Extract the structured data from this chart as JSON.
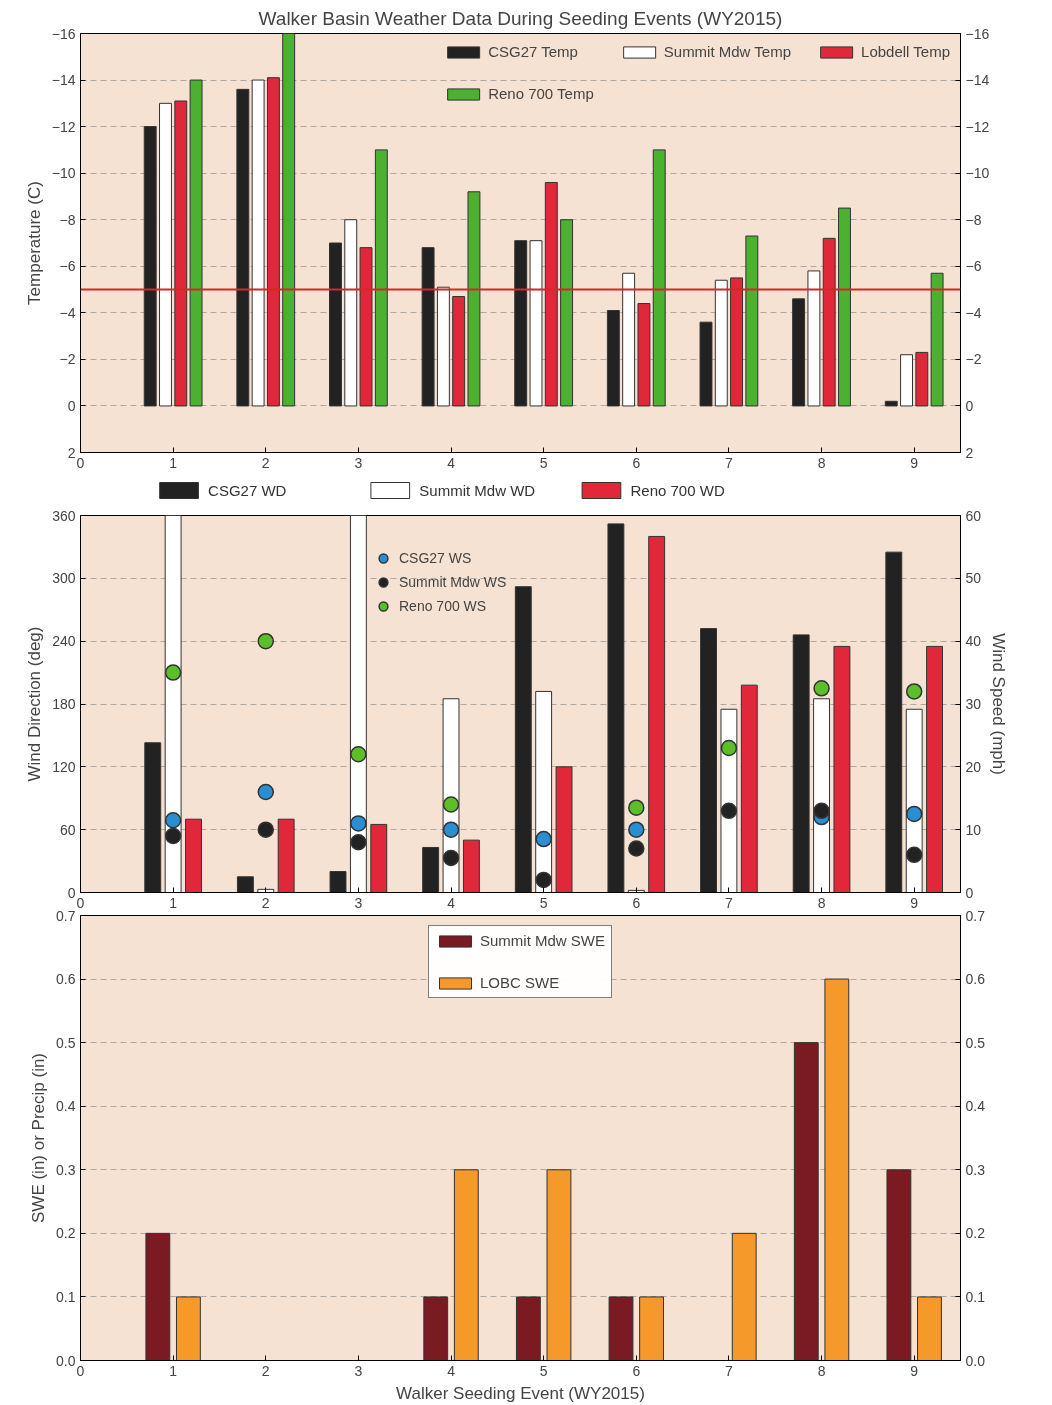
{
  "chart_data": [
    {
      "type": "bar",
      "title": "Walker Basin Weather Data During Seeding Events (WY2015)",
      "ylabel": "Temperature (C)",
      "x": [
        1,
        2,
        3,
        4,
        5,
        6,
        7,
        8,
        9
      ],
      "xlim": [
        0,
        9.5
      ],
      "xticks": [
        0,
        1,
        2,
        3,
        4,
        5,
        6,
        7,
        8,
        9
      ],
      "ylim": [
        2,
        -16
      ],
      "yticks": [
        -16,
        -14,
        -12,
        -10,
        -8,
        -6,
        -4,
        -2,
        0,
        2
      ],
      "y2lim": [
        2,
        -16
      ],
      "y2ticks": [
        -16,
        -14,
        -12,
        -10,
        -8,
        -6,
        -4,
        -2,
        0,
        2
      ],
      "grid": "y",
      "legend": "top right",
      "ref_lines": [
        {
          "axis": "y",
          "value": -5,
          "color": "#d62728"
        }
      ],
      "series": [
        {
          "name": "CSG27 Temp",
          "color": "#222222",
          "values": [
            -12,
            -13.6,
            -7,
            -6.8,
            -7.1,
            -4.1,
            -3.6,
            -4.6,
            -0.2
          ]
        },
        {
          "name": "Summit Mdw Temp",
          "color": "#ffffff",
          "values": [
            -13,
            -14,
            -8,
            -5.1,
            -7.1,
            -5.7,
            -5.4,
            -5.8,
            -2.2
          ]
        },
        {
          "name": "Lobdell Temp",
          "color": "#e0283a",
          "values": [
            -13.1,
            -14.1,
            -6.8,
            -4.7,
            -9.6,
            -4.4,
            -5.5,
            -7.2,
            -2.3
          ]
        },
        {
          "name": "Reno 700 Temp",
          "color": "#4cb030",
          "values": [
            -14,
            -16,
            -11,
            -9.2,
            -8,
            -11,
            -7.3,
            -8.5,
            -5.7
          ]
        }
      ]
    },
    {
      "type": "bar",
      "ylabel": "Wind Direction (deg)",
      "y2label": "Wind Speed (mph)",
      "x": [
        1,
        2,
        3,
        4,
        5,
        6,
        7,
        8,
        9
      ],
      "xlim": [
        0,
        9.5
      ],
      "xticks": [
        0,
        1,
        2,
        3,
        4,
        5,
        6,
        7,
        8,
        9
      ],
      "ylim": [
        0,
        360
      ],
      "yticks": [
        0,
        60,
        120,
        180,
        240,
        300,
        360
      ],
      "y2lim": [
        0,
        60
      ],
      "y2ticks": [
        0,
        10,
        20,
        30,
        40,
        50,
        60
      ],
      "grid": "y",
      "legend": "top",
      "series": [
        {
          "name": "CSG27 WD",
          "color": "#222222",
          "values": [
            143,
            15,
            20,
            43,
            292,
            352,
            252,
            246,
            325
          ]
        },
        {
          "name": "Summit Mdw WD",
          "color": "#ffffff",
          "values": [
            360,
            3,
            360,
            185,
            192,
            2,
            175,
            185,
            175
          ]
        },
        {
          "name": "Reno 700 WD",
          "color": "#e0283a",
          "values": [
            70,
            70,
            65,
            50,
            120,
            340,
            198,
            235,
            235
          ]
        },
        {
          "name": "CSG27 WS",
          "type": "scatter",
          "axis": "y2",
          "marker": "circle",
          "color": "#2a8fd0",
          "values": [
            11.5,
            16,
            11,
            10,
            8.5,
            10,
            null,
            12,
            12.5
          ]
        },
        {
          "name": "Summit Mdw WS",
          "type": "scatter",
          "axis": "y2",
          "marker": "circle",
          "color": "#222222",
          "values": [
            9,
            10,
            8,
            5.5,
            2,
            7,
            13,
            13,
            6
          ]
        },
        {
          "name": "Reno 700 WS",
          "type": "scatter",
          "axis": "y2",
          "marker": "circle",
          "color": "#5cbf2a",
          "values": [
            35,
            40,
            22,
            14,
            null,
            13.5,
            23,
            32.5,
            32
          ]
        }
      ]
    },
    {
      "type": "bar",
      "ylabel": "SWE (in) or Precip (in)",
      "xlabel": "Walker Seeding Event (WY2015)",
      "x": [
        1,
        2,
        3,
        4,
        5,
        6,
        7,
        8,
        9
      ],
      "xlim": [
        0,
        9.5
      ],
      "xticks": [
        0,
        1,
        2,
        3,
        4,
        5,
        6,
        7,
        8,
        9
      ],
      "ylim": [
        0,
        0.7
      ],
      "yticks": [
        {
          "value": 0,
          "label": "0.0"
        },
        0.1,
        0.2,
        0.3,
        0.4,
        0.5,
        0.6,
        0.7
      ],
      "y2lim": [
        0,
        0.7
      ],
      "y2ticks": [
        {
          "value": 0,
          "label": "0.0"
        },
        0.1,
        0.2,
        0.3,
        0.4,
        0.5,
        0.6,
        0.7
      ],
      "grid": "y",
      "legend": "top",
      "series": [
        {
          "name": "Summit Mdw SWE",
          "color": "#7a1a22",
          "values": [
            0.2,
            null,
            null,
            0.1,
            0.1,
            0.1,
            null,
            0.5,
            0.3
          ]
        },
        {
          "name": "LOBC SWE",
          "color": "#f59a2a",
          "values": [
            0.1,
            null,
            null,
            0.3,
            0.3,
            0.1,
            0.2,
            0.6,
            0.1
          ]
        }
      ]
    }
  ]
}
